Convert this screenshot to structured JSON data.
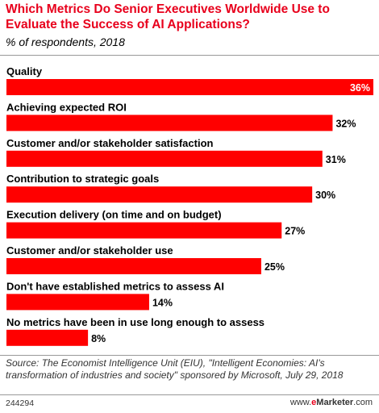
{
  "header": {
    "title": "Which Metrics Do Senior Executives Worldwide Use to Evaluate the Success of AI Applications?",
    "subtitle": "% of respondents, 2018"
  },
  "chart_data": {
    "type": "bar",
    "orientation": "horizontal",
    "title": "Which Metrics Do Senior Executives Worldwide Use to Evaluate the Success of AI Applications?",
    "subtitle": "% of respondents, 2018",
    "categories": [
      "Quality",
      "Achieving expected ROI",
      "Customer and/or stakeholder satisfaction",
      "Contribution to strategic goals",
      "Execution delivery (on time and on budget)",
      "Customer and/or stakeholder use",
      "Don't have established metrics to assess AI",
      "No metrics have been in use long enough to assess"
    ],
    "values": [
      36,
      32,
      31,
      30,
      27,
      25,
      14,
      8
    ],
    "value_labels": [
      "36%",
      "32%",
      "31%",
      "30%",
      "27%",
      "25%",
      "14%",
      "8%"
    ],
    "xlim": [
      0,
      36
    ],
    "grid": false,
    "legend": "none",
    "bar_color": "#ff0000"
  },
  "footer": {
    "source": "Source: The Economist Intelligence Unit (EIU), \"Intelligent Economies: AI's transformation of industries and society\" sponsored by Microsoft, July 29, 2018",
    "chart_id": "244294",
    "brand_prefix": "www.",
    "brand_e": "e",
    "brand_name": "Marketer",
    "brand_suffix": ".com"
  }
}
